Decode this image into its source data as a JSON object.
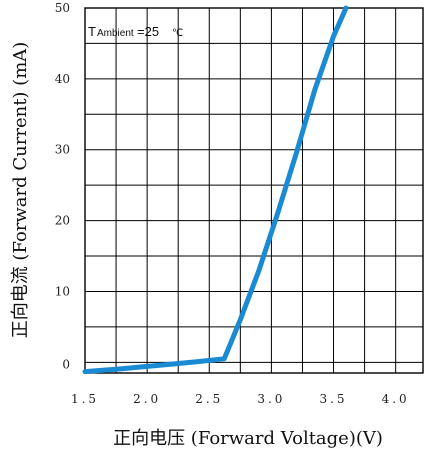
{
  "chart_data": {
    "type": "line",
    "xlabel": "正向电压 (Forward Voltage)(V)",
    "ylabel": "正向电流 (Forward Current) (mA)",
    "xlim": [
      1.5,
      4.22
    ],
    "ylim": [
      -1.5,
      50
    ],
    "x_ticks": [
      "1.5",
      "2.0",
      "2.5",
      "3.0",
      "3.5",
      "4.0"
    ],
    "y_ticks": [
      "0",
      "10",
      "20",
      "30",
      "40",
      "50"
    ],
    "grid": true,
    "annotation": {
      "prefix": "T",
      "subscript": "Ambient",
      "value": "=25",
      "unit": "℃"
    },
    "series": [
      {
        "color": "#1a8ad4",
        "x": [
          1.5,
          1.8,
          2.1,
          2.4,
          2.62,
          2.75,
          2.9,
          3.05,
          3.2,
          3.35,
          3.5,
          3.6
        ],
        "y": [
          -1.3,
          -0.9,
          -0.4,
          0.1,
          0.5,
          6.0,
          13.0,
          21.0,
          29.5,
          38.5,
          46.0,
          50.5
        ]
      }
    ]
  }
}
